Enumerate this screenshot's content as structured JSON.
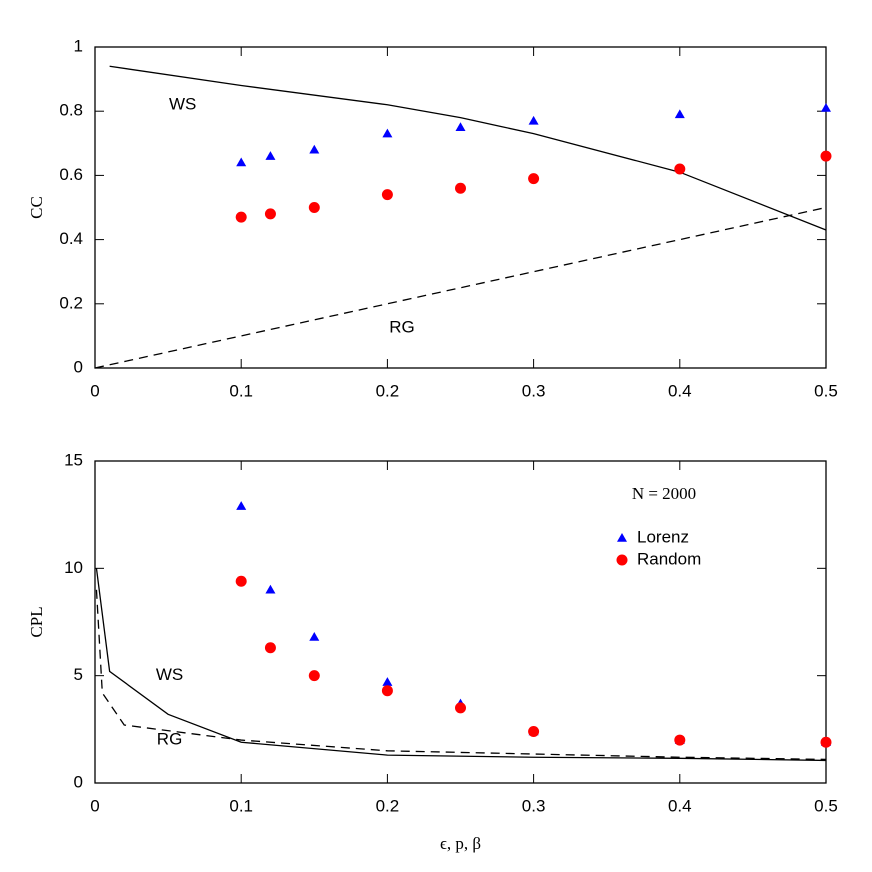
{
  "chart_data": [
    {
      "type": "scatter",
      "ylabel": "CC",
      "x": [
        0.1,
        0.12,
        0.15,
        0.2,
        0.25,
        0.3,
        0.4,
        0.5
      ],
      "series": [
        {
          "marker": "triangle",
          "color": "#0000ff",
          "values": [
            0.64,
            0.66,
            0.68,
            0.73,
            0.75,
            0.77,
            0.79,
            0.81
          ]
        },
        {
          "marker": "circle",
          "color": "#ff0000",
          "values": [
            0.47,
            0.48,
            0.5,
            0.54,
            0.56,
            0.59,
            0.62,
            0.66
          ]
        }
      ],
      "lines": [
        {
          "label": "WS",
          "dash": false,
          "x": [
            0.01,
            0.1,
            0.2,
            0.25,
            0.3,
            0.4,
            0.5
          ],
          "values": [
            0.94,
            0.88,
            0.82,
            0.78,
            0.73,
            0.61,
            0.43
          ]
        },
        {
          "label": "RG",
          "dash": true,
          "x": [
            0,
            0.5
          ],
          "values": [
            0,
            0.5
          ]
        }
      ],
      "xlim": [
        0,
        0.5
      ],
      "xticks": [
        0,
        0.1,
        0.2,
        0.3,
        0.4,
        0.5
      ],
      "ylim": [
        0,
        1
      ],
      "yticks": [
        0,
        0.2,
        0.4,
        0.6,
        0.8,
        1
      ]
    },
    {
      "type": "scatter",
      "ylabel": "CPL",
      "xlabel": "ϵ,  p,  β",
      "annotation": "N = 2000",
      "x": [
        0.1,
        0.12,
        0.15,
        0.2,
        0.25,
        0.3,
        0.4,
        0.5
      ],
      "series": [
        {
          "name": "Lorenz",
          "marker": "triangle",
          "color": "#0000ff",
          "values": [
            12.9,
            9.0,
            6.8,
            4.7,
            3.7,
            2.4,
            2.0,
            1.9
          ]
        },
        {
          "name": "Random",
          "marker": "circle",
          "color": "#ff0000",
          "values": [
            9.4,
            6.3,
            5.0,
            4.3,
            3.5,
            2.4,
            2.0,
            1.9
          ]
        }
      ],
      "lines": [
        {
          "label": "WS",
          "dash": false,
          "x": [
            0.001,
            0.01,
            0.05,
            0.1,
            0.2,
            0.3,
            0.4,
            0.5
          ],
          "values": [
            10,
            5.2,
            3.2,
            1.9,
            1.3,
            1.2,
            1.15,
            1.05
          ]
        },
        {
          "label": "RG",
          "dash": true,
          "x": [
            0.001,
            0.005,
            0.02,
            0.1,
            0.2,
            0.3,
            0.4,
            0.5
          ],
          "values": [
            9.0,
            4.2,
            2.7,
            2.0,
            1.5,
            1.35,
            1.2,
            1.1
          ]
        }
      ],
      "xlim": [
        0,
        0.5
      ],
      "xticks": [
        0,
        0.1,
        0.2,
        0.3,
        0.4,
        0.5
      ],
      "ylim": [
        0,
        15
      ],
      "yticks": [
        0,
        5,
        10,
        15
      ]
    }
  ]
}
